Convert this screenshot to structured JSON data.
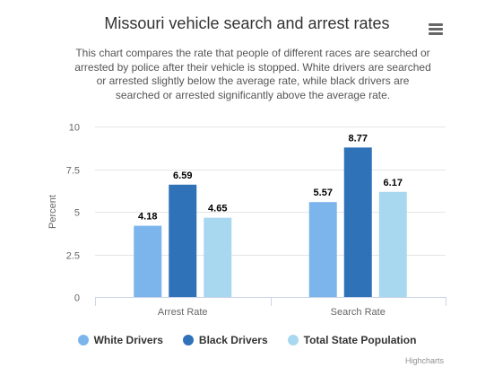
{
  "title": "Missouri vehicle search and arrest rates",
  "subtitle": "This chart compares the rate that people of different races are searched or arrested by police after their vehicle is stopped. White drivers are searched or arrested slightly below the average rate, while black drivers are searched or arrested significantly above the average rate.",
  "credits": "Highcharts",
  "menu_icon": "hamburger-menu-icon",
  "chart_data": {
    "type": "bar",
    "categories": [
      "Arrest Rate",
      "Search Rate"
    ],
    "series": [
      {
        "name": "White Drivers",
        "values": [
          4.18,
          5.57
        ],
        "labels": [
          "4.18",
          "5.57"
        ],
        "color": "#7cb5ec"
      },
      {
        "name": "Black Drivers",
        "values": [
          6.59,
          8.77
        ],
        "labels": [
          "6.59",
          "8.77"
        ],
        "color": "#2f72b8"
      },
      {
        "name": "Total State Population",
        "values": [
          4.65,
          6.17
        ],
        "labels": [
          "4.65",
          "6.17"
        ],
        "color": "#a8d8f0"
      }
    ],
    "ylabel": "Percent",
    "xlabel": "",
    "ylim": [
      0,
      10
    ],
    "yticks": [
      "0",
      "2.5",
      "5",
      "7.5",
      "10"
    ],
    "grid": true,
    "legend": "bottom-center"
  }
}
